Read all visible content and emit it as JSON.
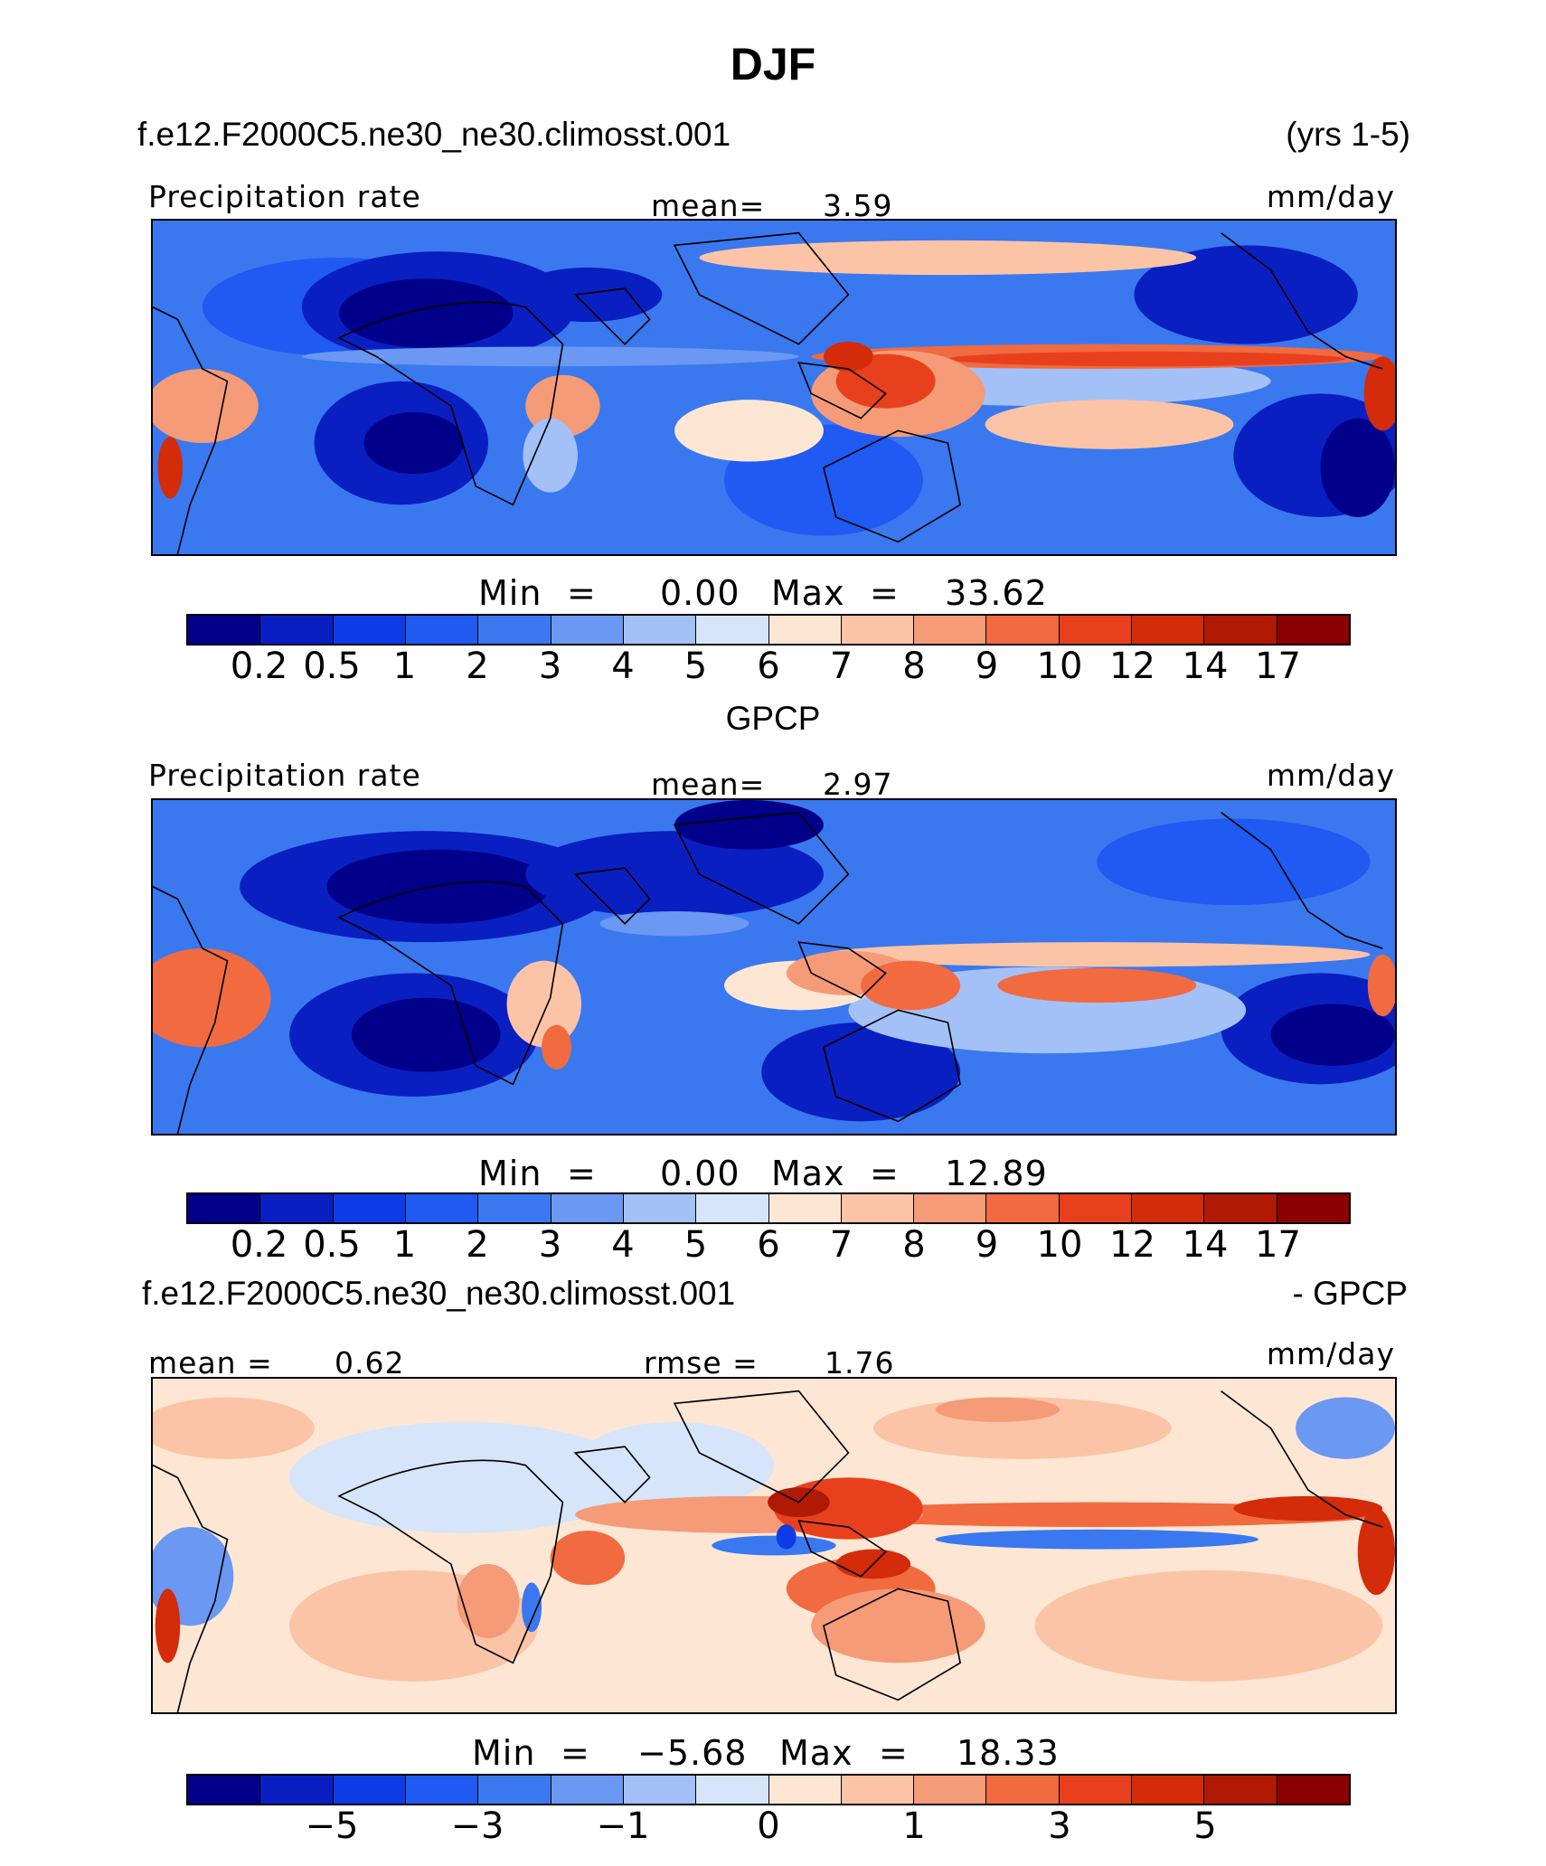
{
  "title": "DJF",
  "case_name": "f.e12.F2000C5.ne30_ne30.climosst.001",
  "years": "(yrs 1-5)",
  "panel1": {
    "left_label": "Precipitation rate",
    "mean_label": "mean=",
    "mean_value": "3.59",
    "units": "mm/day",
    "min_label": "Min",
    "min_value": "0.00",
    "max_label": "Max",
    "max_value": "33.62"
  },
  "panel2": {
    "heading": "GPCP",
    "left_label": "Precipitation rate",
    "mean_label": "mean=",
    "mean_value": "2.97",
    "units": "mm/day",
    "min_label": "Min",
    "min_value": "0.00",
    "max_label": "Max",
    "max_value": "12.89"
  },
  "panel3": {
    "heading_left": "f.e12.F2000C5.ne30_ne30.climosst.001",
    "heading_right": "- GPCP",
    "mean_label": "mean =",
    "mean_value": "0.62",
    "rmse_label": "rmse =",
    "rmse_value": "1.76",
    "units": "mm/day",
    "min_label": "Min",
    "min_value": "−5.68",
    "max_label": "Max",
    "max_value": "18.33"
  },
  "colors": {
    "palette": [
      "#00008b",
      "#0a1fc2",
      "#0d3ce6",
      "#1f5af2",
      "#3a78f0",
      "#6a98f2",
      "#a4c1f7",
      "#d6e5fa",
      "#fde7d4",
      "#fcc4a6",
      "#f59b77",
      "#f26a3f",
      "#e8401d",
      "#d42b0a",
      "#b01a05",
      "#8b0000"
    ],
    "land_outline": "#000000"
  },
  "colorbar_abs": {
    "ticks": [
      "0.2",
      "0.5",
      "1",
      "2",
      "3",
      "4",
      "5",
      "6",
      "7",
      "8",
      "9",
      "10",
      "12",
      "14",
      "17"
    ]
  },
  "colorbar_diff": {
    "ticks": [
      "−5",
      "−3",
      "−1",
      "0",
      "1",
      "3",
      "5"
    ]
  }
}
